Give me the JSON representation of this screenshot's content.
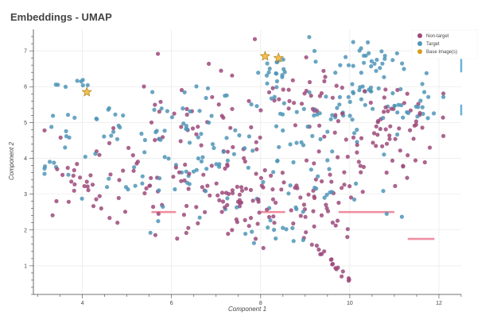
{
  "chart_data": {
    "type": "scatter",
    "title": "Embeddings - UMAP",
    "xlabel": "Component 1",
    "ylabel": "Component 2",
    "xlim": [
      2.9,
      12.5
    ],
    "ylim": [
      0.2,
      7.6
    ],
    "x_ticks": [
      4,
      6,
      8,
      10,
      12
    ],
    "y_ticks": [
      1,
      2,
      3,
      4,
      5,
      6,
      7
    ],
    "grid": true,
    "legend": "top-right",
    "colors": {
      "Non-target": "#9c4a7a",
      "Target": "#4f95b7",
      "Base Image(s)": "#f2c14e",
      "segments": "#ef8fa0",
      "edge_ticks": "#6bb3d9"
    },
    "series": [
      {
        "name": "Non-target",
        "marker": "circle",
        "color": "#9c4a7a"
      },
      {
        "name": "Target",
        "marker": "circle",
        "color": "#4f95b7"
      },
      {
        "name": "Base Image(s)",
        "marker": "star",
        "color": "#f2c14e",
        "points": [
          [
            4.1,
            5.85
          ],
          [
            8.1,
            6.85
          ],
          [
            8.4,
            6.8
          ]
        ]
      }
    ],
    "clusters": [
      {
        "series": "Target",
        "cx": 8.3,
        "cy": 6.5,
        "sx": 0.2,
        "sy": 0.18,
        "n": 15
      },
      {
        "series": "Target",
        "cx": 10.3,
        "cy": 6.8,
        "sx": 0.5,
        "sy": 0.3,
        "n": 30
      },
      {
        "series": "Target",
        "cx": 10.5,
        "cy": 5.7,
        "sx": 0.6,
        "sy": 0.4,
        "n": 35
      },
      {
        "series": "Target",
        "cx": 9.3,
        "cy": 5.2,
        "sx": 0.8,
        "sy": 0.6,
        "n": 30
      },
      {
        "series": "Target",
        "cx": 11.5,
        "cy": 5.4,
        "sx": 0.3,
        "sy": 0.2,
        "n": 12
      },
      {
        "series": "Target",
        "cx": 7.2,
        "cy": 4.2,
        "sx": 1.2,
        "sy": 0.6,
        "n": 45
      },
      {
        "series": "Target",
        "cx": 5.0,
        "cy": 5.0,
        "sx": 0.6,
        "sy": 0.3,
        "n": 20
      },
      {
        "series": "Target",
        "cx": 8.3,
        "cy": 2.0,
        "sx": 0.6,
        "sy": 0.3,
        "n": 12
      },
      {
        "series": "Target",
        "cx": 6.5,
        "cy": 3.2,
        "sx": 1.3,
        "sy": 0.6,
        "n": 30
      },
      {
        "series": "Target",
        "cx": 3.9,
        "cy": 6.05,
        "sx": 0.2,
        "sy": 0.08,
        "n": 8
      },
      {
        "series": "Target",
        "cx": 3.7,
        "cy": 4.6,
        "sx": 0.25,
        "sy": 0.5,
        "n": 8
      },
      {
        "series": "Target",
        "cx": 3.3,
        "cy": 3.75,
        "sx": 0.12,
        "sy": 0.08,
        "n": 6
      },
      {
        "series": "Target",
        "cx": 9.5,
        "cy": 3.4,
        "sx": 0.8,
        "sy": 0.6,
        "n": 20
      },
      {
        "series": "Target",
        "cx": 7.0,
        "cy": 5.5,
        "sx": 1.0,
        "sy": 0.3,
        "n": 18
      },
      {
        "series": "Non-target",
        "cx": 7.2,
        "cy": 3.0,
        "sx": 1.5,
        "sy": 0.7,
        "n": 80
      },
      {
        "series": "Non-target",
        "cx": 8.7,
        "cy": 2.6,
        "sx": 1.0,
        "sy": 0.5,
        "n": 40
      },
      {
        "series": "Non-target",
        "cx": 10.8,
        "cy": 4.6,
        "sx": 0.8,
        "sy": 0.6,
        "n": 40
      },
      {
        "series": "Non-target",
        "cx": 9.0,
        "cy": 6.0,
        "sx": 0.8,
        "sy": 0.6,
        "n": 35
      },
      {
        "series": "Non-target",
        "cx": 4.8,
        "cy": 3.5,
        "sx": 0.7,
        "sy": 0.6,
        "n": 30
      },
      {
        "series": "Non-target",
        "cx": 6.5,
        "cy": 4.8,
        "sx": 1.2,
        "sy": 0.7,
        "n": 40
      },
      {
        "series": "Non-target",
        "cx": 3.9,
        "cy": 3.4,
        "sx": 0.3,
        "sy": 0.2,
        "n": 10
      },
      {
        "series": "Non-target",
        "cx": 11.4,
        "cy": 5.4,
        "sx": 0.5,
        "sy": 0.4,
        "n": 15
      },
      {
        "series": "Non-target",
        "cx": 10.0,
        "cy": 3.7,
        "sx": 0.7,
        "sy": 0.5,
        "n": 25
      }
    ],
    "tail": {
      "series": "Non-target",
      "from": [
        9.2,
        1.6
      ],
      "to": [
        10.0,
        0.55
      ],
      "n": 18
    },
    "segments": [
      {
        "x": [
          5.55,
          6.1
        ],
        "y": 2.5
      },
      {
        "x": [
          8.0,
          8.55
        ],
        "y": 2.5
      },
      {
        "x": [
          9.75,
          11.0
        ],
        "y": 2.5
      },
      {
        "x": [
          11.3,
          11.9
        ],
        "y": 1.75
      }
    ],
    "edge_ticks": [
      {
        "x": 12.5,
        "y": [
          6.4,
          7.3
        ]
      },
      {
        "x": 12.5,
        "y": [
          5.2,
          5.5
        ]
      }
    ]
  }
}
